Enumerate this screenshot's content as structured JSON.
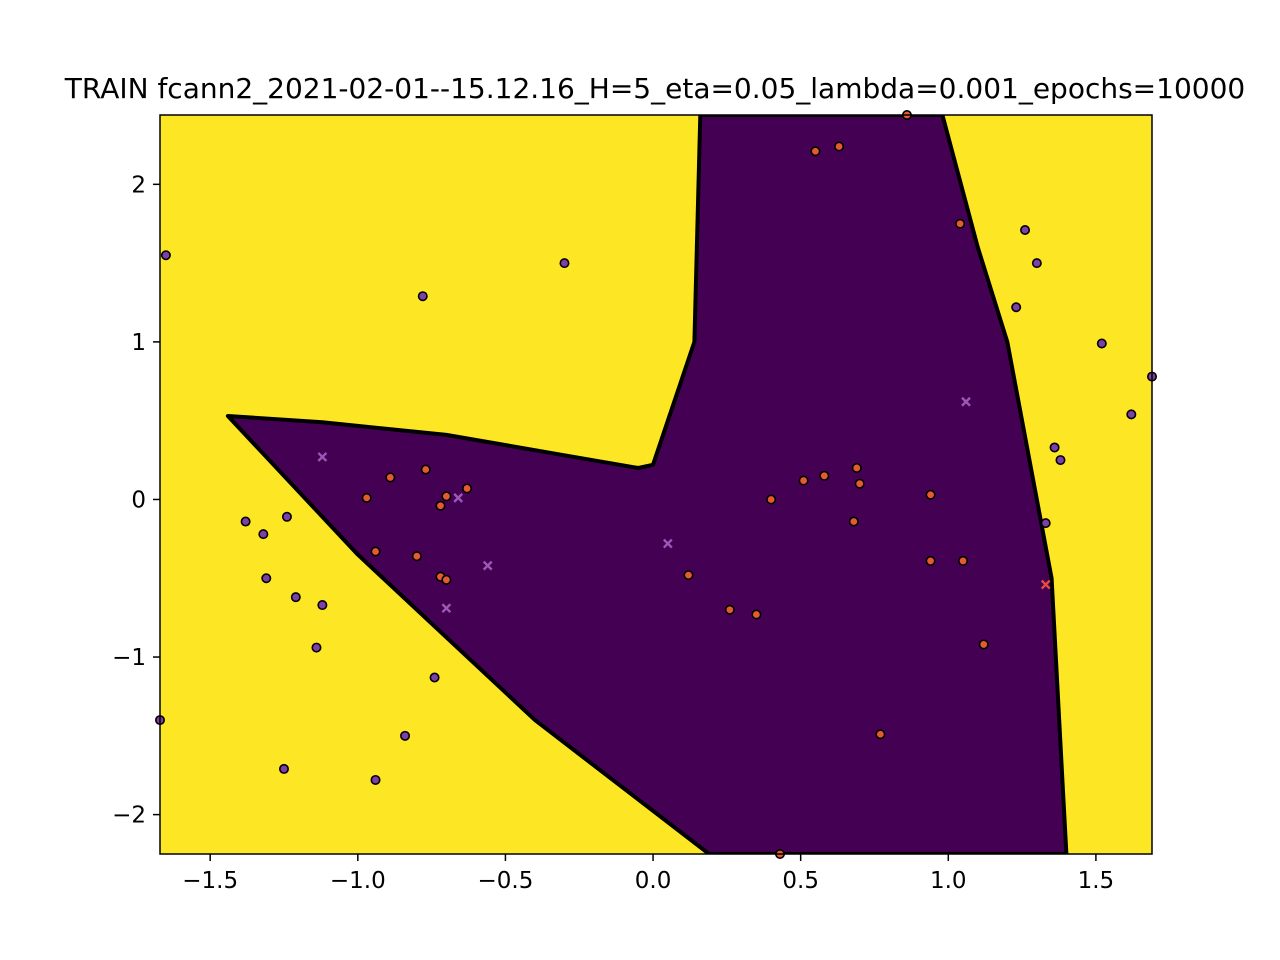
{
  "chart_data": {
    "type": "scatter",
    "title": "TRAIN fcann2_2021-02-01--15.12.16_H=5_eta=0.05_lambda=0.001_epochs=10000",
    "xlabel": "",
    "ylabel": "",
    "xlim": [
      -1.67,
      1.69
    ],
    "ylim": [
      -2.25,
      2.44
    ],
    "xticks": [
      -1.5,
      -1.0,
      -0.5,
      0.0,
      0.5,
      1.0,
      1.5
    ],
    "yticks": [
      -2,
      -1,
      0,
      1,
      2
    ],
    "xtick_labels": [
      "−1.5",
      "−1.0",
      "−0.5",
      "0.0",
      "0.5",
      "1.0",
      "1.5"
    ],
    "ytick_labels": [
      "−2",
      "−1",
      "0",
      "1",
      "2"
    ],
    "grid": false,
    "legend": "none",
    "colors": {
      "background_region": "#fde725",
      "decision_region": "#440154",
      "boundary": "#000000",
      "class_purple": "#7e3fa8",
      "class_orange": "#e35b2f",
      "misclassified_purple": "#9b59b6",
      "misclassified_red": "#e74c3c"
    },
    "decision_region": [
      [
        -1.44,
        0.53
      ],
      [
        -1.12,
        0.49
      ],
      [
        -0.7,
        0.41
      ],
      [
        -0.3,
        0.28
      ],
      [
        -0.05,
        0.2
      ],
      [
        0.0,
        0.22
      ],
      [
        0.14,
        1.0
      ],
      [
        0.16,
        2.44
      ],
      [
        0.98,
        2.44
      ],
      [
        1.1,
        1.6
      ],
      [
        1.2,
        1.0
      ],
      [
        1.35,
        -0.5
      ],
      [
        1.39,
        -1.9
      ],
      [
        1.4,
        -2.25
      ],
      [
        0.19,
        -2.25
      ],
      [
        -0.4,
        -1.4
      ],
      [
        -1.0,
        -0.35
      ]
    ],
    "series": [
      {
        "marker": "circle",
        "color": "purple",
        "points": [
          [
            -1.65,
            1.55
          ],
          [
            -0.78,
            1.29
          ],
          [
            -0.3,
            1.5
          ],
          [
            1.26,
            1.71
          ],
          [
            1.3,
            1.5
          ],
          [
            1.23,
            1.22
          ],
          [
            1.52,
            0.99
          ],
          [
            1.69,
            0.78
          ],
          [
            1.62,
            0.54
          ],
          [
            1.36,
            0.33
          ],
          [
            1.38,
            0.25
          ],
          [
            1.33,
            -0.15
          ],
          [
            -1.38,
            -0.14
          ],
          [
            -1.32,
            -0.22
          ],
          [
            -1.24,
            -0.11
          ],
          [
            -1.31,
            -0.5
          ],
          [
            -1.21,
            -0.62
          ],
          [
            -1.12,
            -0.67
          ],
          [
            -1.14,
            -0.94
          ],
          [
            -0.74,
            -1.13
          ],
          [
            -1.67,
            -1.4
          ],
          [
            -0.84,
            -1.5
          ],
          [
            -1.25,
            -1.71
          ],
          [
            -0.94,
            -1.78
          ]
        ]
      },
      {
        "marker": "circle",
        "color": "orange",
        "points": [
          [
            0.55,
            2.21
          ],
          [
            0.63,
            2.24
          ],
          [
            0.86,
            2.44
          ],
          [
            1.04,
            1.75
          ],
          [
            -0.89,
            0.14
          ],
          [
            -0.77,
            0.19
          ],
          [
            -0.97,
            0.01
          ],
          [
            -0.72,
            -0.04
          ],
          [
            -0.7,
            0.02
          ],
          [
            -0.63,
            0.07
          ],
          [
            -0.94,
            -0.33
          ],
          [
            -0.8,
            -0.36
          ],
          [
            -0.72,
            -0.49
          ],
          [
            -0.7,
            -0.51
          ],
          [
            0.4,
            0.0
          ],
          [
            0.51,
            0.12
          ],
          [
            0.58,
            0.15
          ],
          [
            0.69,
            0.2
          ],
          [
            0.7,
            0.1
          ],
          [
            0.94,
            0.03
          ],
          [
            0.68,
            -0.14
          ],
          [
            0.12,
            -0.48
          ],
          [
            0.94,
            -0.39
          ],
          [
            1.05,
            -0.39
          ],
          [
            0.26,
            -0.7
          ],
          [
            0.35,
            -0.73
          ],
          [
            1.12,
            -0.92
          ],
          [
            0.77,
            -1.49
          ],
          [
            0.43,
            -2.25
          ]
        ]
      },
      {
        "marker": "x",
        "color": "purple",
        "points": [
          [
            -1.12,
            0.27
          ],
          [
            -0.66,
            0.01
          ],
          [
            -0.56,
            -0.42
          ],
          [
            0.05,
            -0.28
          ],
          [
            1.06,
            0.62
          ],
          [
            -0.7,
            -0.69
          ]
        ]
      },
      {
        "marker": "x",
        "color": "red",
        "points": [
          [
            1.33,
            -0.54
          ]
        ]
      }
    ]
  }
}
